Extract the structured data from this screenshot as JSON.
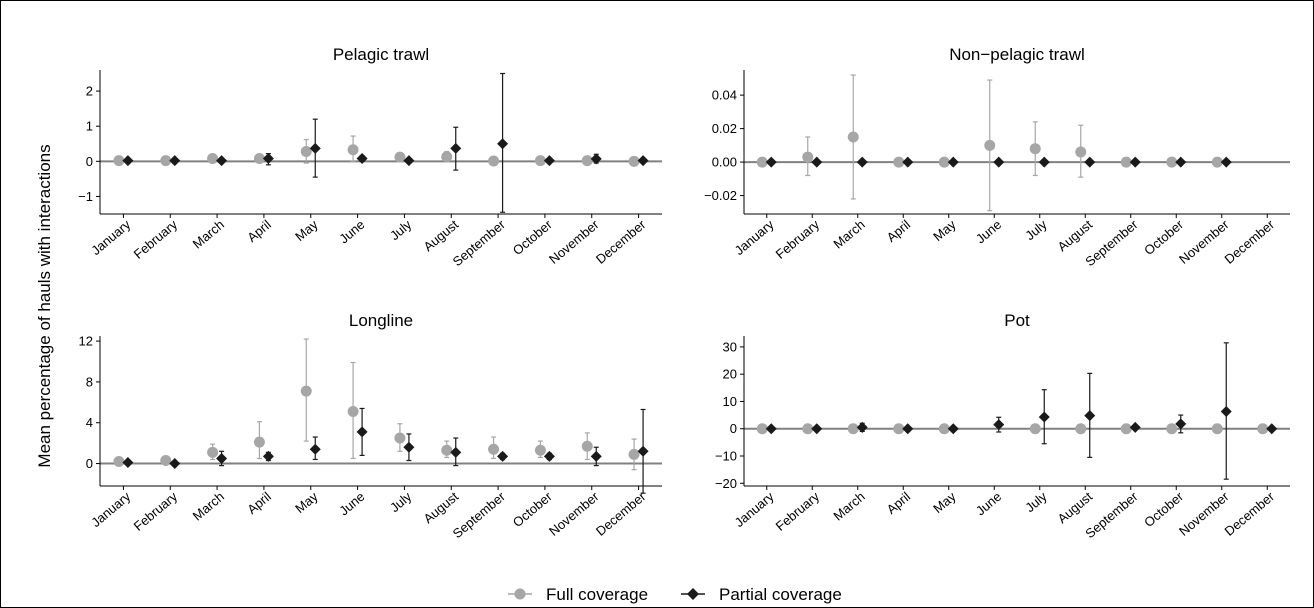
{
  "ylabel": "Mean percentage of hauls with interactions",
  "legend": {
    "full": "Full coverage",
    "partial": "Partial coverage"
  },
  "colors": {
    "full": "#a6a6a6",
    "partial": "#1a1a1a",
    "zero_line": "#808080",
    "axis": "#000000"
  },
  "chart_data": [
    {
      "type": "scatter",
      "title": "Pelagic trawl",
      "categories": [
        "January",
        "February",
        "March",
        "April",
        "May",
        "June",
        "July",
        "August",
        "September",
        "October",
        "November",
        "December"
      ],
      "ylim": [
        -1.5,
        2.6
      ],
      "yticks": [
        -1,
        0,
        1,
        2
      ],
      "ytick_labels": [
        "-1",
        "0",
        "1",
        "2"
      ],
      "series": [
        {
          "name": "Full coverage",
          "values": [
            0.02,
            0.02,
            0.08,
            0.08,
            0.28,
            0.33,
            0.12,
            0.13,
            0.01,
            0.02,
            0.02,
            0.0
          ],
          "lower": [
            0.02,
            0.02,
            0.02,
            0.0,
            -0.05,
            0.0,
            0.06,
            0.0,
            0.01,
            0.02,
            0.02,
            0.0
          ],
          "upper": [
            0.02,
            0.02,
            0.12,
            0.2,
            0.62,
            0.72,
            0.18,
            0.28,
            0.01,
            0.02,
            0.02,
            0.0
          ]
        },
        {
          "name": "Partial coverage",
          "values": [
            0.02,
            0.02,
            0.02,
            0.08,
            0.37,
            0.08,
            0.02,
            0.37,
            0.5,
            0.02,
            0.07,
            0.02
          ],
          "lower": [
            0.02,
            0.02,
            0.02,
            -0.1,
            -0.45,
            0.0,
            0.02,
            -0.25,
            -1.45,
            0.02,
            -0.05,
            0.02
          ],
          "upper": [
            0.02,
            0.02,
            0.02,
            0.22,
            1.2,
            0.16,
            0.02,
            0.97,
            2.5,
            0.02,
            0.2,
            0.02
          ]
        }
      ]
    },
    {
      "type": "scatter",
      "title": "Non−pelagic trawl",
      "categories": [
        "January",
        "February",
        "March",
        "April",
        "May",
        "June",
        "July",
        "August",
        "September",
        "October",
        "November",
        "December"
      ],
      "ylim": [
        -0.031,
        0.055
      ],
      "yticks": [
        -0.02,
        0.0,
        0.02,
        0.04
      ],
      "ytick_labels": [
        "-0.02",
        "0.00",
        "0.02",
        "0.04"
      ],
      "series": [
        {
          "name": "Full coverage",
          "values": [
            0.0,
            0.003,
            0.015,
            0.0,
            0.0,
            0.01,
            0.008,
            0.006,
            0.0,
            0.0,
            0.0,
            null
          ],
          "lower": [
            0.0,
            -0.008,
            -0.022,
            0.0,
            0.0,
            -0.029,
            -0.008,
            -0.009,
            0.0,
            0.0,
            0.0,
            null
          ],
          "upper": [
            0.0,
            0.015,
            0.052,
            0.0,
            0.0,
            0.049,
            0.024,
            0.022,
            0.0,
            0.0,
            0.0,
            null
          ]
        },
        {
          "name": "Partial coverage",
          "values": [
            0.0,
            0.0,
            0.0,
            0.0,
            0.0,
            0.0,
            0.0,
            0.0,
            0.0,
            0.0,
            0.0,
            null
          ],
          "lower": [
            0.0,
            0.0,
            0.0,
            0.0,
            0.0,
            0.0,
            0.0,
            0.0,
            0.0,
            0.0,
            0.0,
            null
          ],
          "upper": [
            0.0,
            0.0,
            0.0,
            0.0,
            0.0,
            0.0,
            0.0,
            0.0,
            0.0,
            0.0,
            0.0,
            null
          ]
        }
      ]
    },
    {
      "type": "scatter",
      "title": "Longline",
      "categories": [
        "January",
        "February",
        "March",
        "April",
        "May",
        "June",
        "July",
        "August",
        "September",
        "October",
        "November",
        "December"
      ],
      "ylim": [
        -2.2,
        12.5
      ],
      "yticks": [
        0,
        4,
        8,
        12
      ],
      "ytick_labels": [
        "0",
        "4",
        "8",
        "12"
      ],
      "series": [
        {
          "name": "Full coverage",
          "values": [
            0.2,
            0.3,
            1.1,
            2.1,
            7.1,
            5.1,
            2.5,
            1.3,
            1.4,
            1.3,
            1.7,
            0.9
          ],
          "lower": [
            0.1,
            0.1,
            0.4,
            0.5,
            2.2,
            0.5,
            1.2,
            0.6,
            0.5,
            0.6,
            0.4,
            -0.6
          ],
          "upper": [
            0.3,
            0.5,
            1.9,
            4.1,
            12.2,
            9.9,
            3.9,
            2.2,
            2.6,
            2.2,
            3.0,
            2.4
          ]
        },
        {
          "name": "Partial coverage",
          "values": [
            0.1,
            0.0,
            0.5,
            0.7,
            1.4,
            3.1,
            1.6,
            1.1,
            0.7,
            0.7,
            0.7,
            1.2
          ],
          "lower": [
            0.0,
            0.0,
            -0.2,
            0.3,
            0.4,
            0.8,
            0.3,
            -0.2,
            0.4,
            0.4,
            -0.2,
            -2.9
          ],
          "upper": [
            0.2,
            0.0,
            1.2,
            1.1,
            2.6,
            5.4,
            2.9,
            2.5,
            1.0,
            1.0,
            1.6,
            5.3
          ]
        }
      ]
    },
    {
      "type": "scatter",
      "title": "Pot",
      "categories": [
        "January",
        "February",
        "March",
        "April",
        "May",
        "June",
        "July",
        "August",
        "September",
        "October",
        "November",
        "December"
      ],
      "ylim": [
        -21,
        34
      ],
      "yticks": [
        -20,
        -10,
        0,
        10,
        20,
        30
      ],
      "ytick_labels": [
        "-20",
        "-10",
        "0",
        "10",
        "20",
        "30"
      ],
      "series": [
        {
          "name": "Full coverage",
          "values": [
            0,
            0,
            0,
            0,
            0,
            null,
            0,
            0,
            0,
            0,
            0,
            0
          ],
          "lower": [
            0,
            0,
            0,
            0,
            0,
            null,
            0,
            0,
            0,
            0,
            0,
            0
          ],
          "upper": [
            0,
            0,
            0,
            0,
            0,
            null,
            0,
            0,
            0,
            0,
            0,
            0
          ]
        },
        {
          "name": "Partial coverage",
          "values": [
            0,
            0,
            0.5,
            0,
            0,
            1.5,
            4.3,
            4.8,
            0.5,
            1.8,
            6.3,
            0
          ],
          "lower": [
            0,
            0,
            -1,
            0,
            0,
            -1.2,
            -5.5,
            -10.5,
            0,
            -1.5,
            -18.5,
            0
          ],
          "upper": [
            0,
            0,
            2,
            0,
            0,
            4.2,
            14.3,
            20.3,
            1,
            5,
            31.5,
            0
          ]
        }
      ]
    }
  ]
}
